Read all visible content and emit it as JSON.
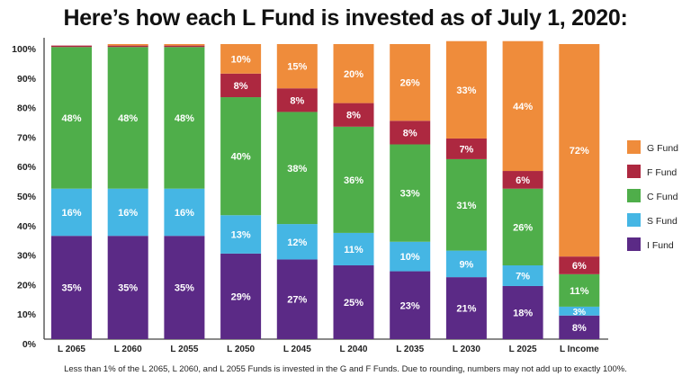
{
  "chart_data": {
    "type": "bar",
    "stacked": true,
    "title": "Here’s how each L Fund is invested as of July 1, 2020:",
    "xlabel": "",
    "ylabel": "",
    "ylim": [
      0,
      100
    ],
    "yticks": [
      "0%",
      "10%",
      "20%",
      "30%",
      "40%",
      "50%",
      "60%",
      "70%",
      "80%",
      "90%",
      "100%"
    ],
    "grid": false,
    "legend_position": "right",
    "categories": [
      "L 2065",
      "L 2060",
      "L 2055",
      "L 2050",
      "L 2045",
      "L 2040",
      "L 2035",
      "L 2030",
      "L 2025",
      "L Income"
    ],
    "series": [
      {
        "name": "I Fund",
        "color": "#5b2a86",
        "values": [
          35,
          35,
          35,
          29,
          27,
          25,
          23,
          21,
          18,
          8
        ]
      },
      {
        "name": "S Fund",
        "color": "#45b6e4",
        "values": [
          16,
          16,
          16,
          13,
          12,
          11,
          10,
          9,
          7,
          3
        ]
      },
      {
        "name": "C Fund",
        "color": "#4fae4a",
        "values": [
          48,
          48,
          48,
          40,
          38,
          36,
          33,
          31,
          26,
          11
        ]
      },
      {
        "name": "F Fund",
        "color": "#ad2840",
        "values": [
          0.5,
          0.5,
          0.5,
          8,
          8,
          8,
          8,
          7,
          6,
          6
        ]
      },
      {
        "name": "G Fund",
        "color": "#ef8c3b",
        "values": [
          0,
          0.5,
          0.5,
          10,
          15,
          20,
          26,
          33,
          44,
          72
        ]
      }
    ],
    "legend_order": [
      "G Fund",
      "F Fund",
      "C Fund",
      "S Fund",
      "I Fund"
    ],
    "footnote": "Less than 1% of the L 2065, L 2060, and L 2055 Funds is invested in the G and F Funds. Due to rounding, numbers may not add up to exactly 100%."
  }
}
